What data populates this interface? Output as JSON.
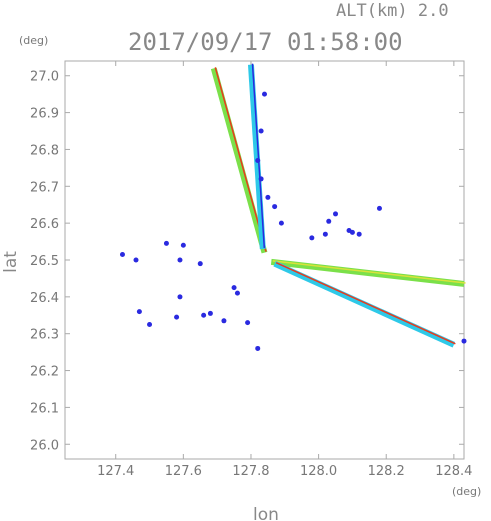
{
  "header": {
    "altitude_label": "ALT(km) 2.0",
    "timestamp": "2017/09/17 01:58:00"
  },
  "chart_data": {
    "type": "scatter",
    "subtitle": "ALT(km) 2.0",
    "title": "2017/09/17 01:58:00",
    "xlabel": "lon",
    "ylabel": "lat",
    "x_unit": "(deg)",
    "y_unit": "(deg)",
    "xlim": [
      127.25,
      128.43
    ],
    "ylim": [
      25.96,
      27.04
    ],
    "xticks": [
      127.4,
      127.6,
      127.8,
      128.0,
      128.2,
      128.4
    ],
    "xtick_labels": [
      "127.4",
      "127.6",
      "127.8",
      "128.0",
      "128.2",
      "128.4"
    ],
    "yticks": [
      26.0,
      26.1,
      26.2,
      26.3,
      26.4,
      26.5,
      26.6,
      26.7,
      26.8,
      26.9,
      27.0
    ],
    "ytick_labels": [
      "26.0",
      "26.1",
      "26.2",
      "26.3",
      "26.4",
      "26.5",
      "26.6",
      "26.7",
      "26.8",
      "26.9",
      "27.0"
    ],
    "grid": false,
    "colors": {
      "low": "#2a2ae0",
      "mid": "#2ec9e8",
      "green": "#7be04a",
      "yellow": "#d8e23a",
      "high": "#e83a1e"
    },
    "beams": [
      {
        "name": "beam-upper",
        "from": [
          127.84,
          26.52
        ],
        "to": [
          127.69,
          27.02
        ],
        "color": "green",
        "edge": "high"
      },
      {
        "name": "beam-north",
        "from": [
          127.835,
          26.53
        ],
        "to": [
          127.8,
          27.03
        ],
        "color": "mid",
        "edge": "low"
      },
      {
        "name": "beam-east",
        "from": [
          127.86,
          26.495
        ],
        "to": [
          128.43,
          26.435
        ],
        "color": "green",
        "edge": "yellow"
      },
      {
        "name": "beam-southeast",
        "from": [
          127.87,
          26.49
        ],
        "to": [
          128.4,
          26.27
        ],
        "color": "mid",
        "edge": "high"
      }
    ],
    "echoes": [
      {
        "lon": 128.18,
        "lat": 26.64,
        "color": "low"
      },
      {
        "lon": 128.03,
        "lat": 26.605,
        "color": "low"
      },
      {
        "lon": 128.05,
        "lat": 26.625,
        "color": "low"
      },
      {
        "lon": 128.1,
        "lat": 26.575,
        "color": "low"
      },
      {
        "lon": 128.09,
        "lat": 26.58,
        "color": "low"
      },
      {
        "lon": 128.12,
        "lat": 26.57,
        "color": "low"
      },
      {
        "lon": 128.02,
        "lat": 26.57,
        "color": "low"
      },
      {
        "lon": 127.98,
        "lat": 26.56,
        "color": "low"
      },
      {
        "lon": 127.42,
        "lat": 26.515,
        "color": "low"
      },
      {
        "lon": 127.46,
        "lat": 26.5,
        "color": "low"
      },
      {
        "lon": 127.55,
        "lat": 26.545,
        "color": "low"
      },
      {
        "lon": 127.6,
        "lat": 26.54,
        "color": "low"
      },
      {
        "lon": 127.59,
        "lat": 26.5,
        "color": "low"
      },
      {
        "lon": 127.65,
        "lat": 26.49,
        "color": "low"
      },
      {
        "lon": 127.76,
        "lat": 26.41,
        "color": "low"
      },
      {
        "lon": 127.75,
        "lat": 26.425,
        "color": "low"
      },
      {
        "lon": 127.59,
        "lat": 26.4,
        "color": "low"
      },
      {
        "lon": 127.47,
        "lat": 26.36,
        "color": "low"
      },
      {
        "lon": 127.5,
        "lat": 26.325,
        "color": "low"
      },
      {
        "lon": 127.58,
        "lat": 26.345,
        "color": "low"
      },
      {
        "lon": 127.66,
        "lat": 26.35,
        "color": "low"
      },
      {
        "lon": 127.68,
        "lat": 26.355,
        "color": "low"
      },
      {
        "lon": 127.72,
        "lat": 26.335,
        "color": "low"
      },
      {
        "lon": 127.79,
        "lat": 26.33,
        "color": "low"
      },
      {
        "lon": 127.82,
        "lat": 26.26,
        "color": "low"
      },
      {
        "lon": 127.87,
        "lat": 26.645,
        "color": "low"
      },
      {
        "lon": 127.83,
        "lat": 26.85,
        "color": "low"
      },
      {
        "lon": 127.84,
        "lat": 26.95,
        "color": "low"
      },
      {
        "lon": 127.83,
        "lat": 26.72,
        "color": "low"
      },
      {
        "lon": 127.82,
        "lat": 26.77,
        "color": "low"
      },
      {
        "lon": 127.85,
        "lat": 26.67,
        "color": "low"
      },
      {
        "lon": 128.43,
        "lat": 26.28,
        "color": "low"
      },
      {
        "lon": 127.89,
        "lat": 26.6,
        "color": "low"
      }
    ]
  }
}
